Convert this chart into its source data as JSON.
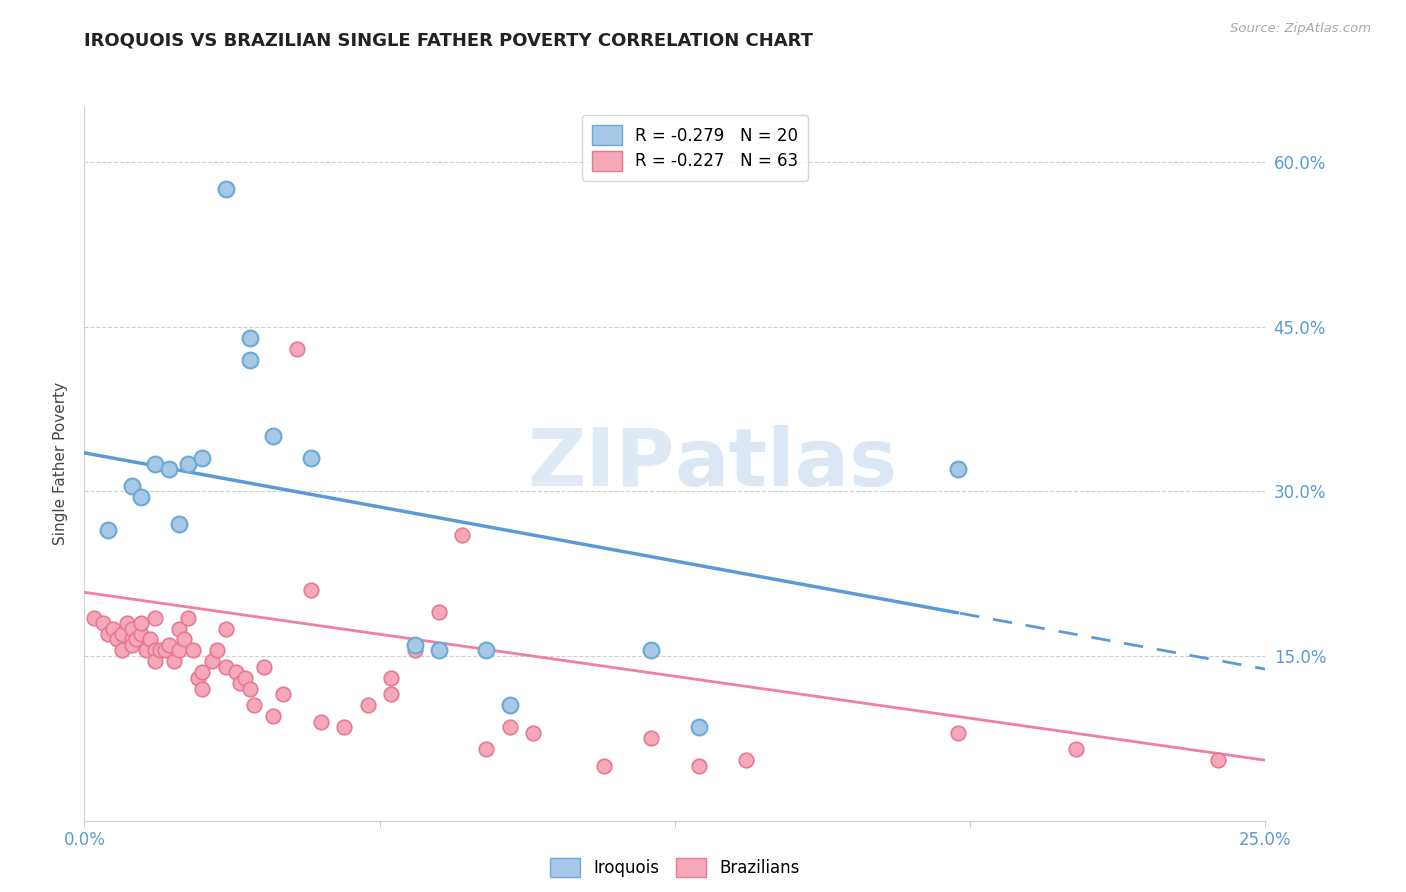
{
  "title": "IROQUOIS VS BRAZILIAN SINGLE FATHER POVERTY CORRELATION CHART",
  "source": "Source: ZipAtlas.com",
  "ylabel": "Single Father Poverty",
  "watermark_zip": "ZIP",
  "watermark_atlas": "atlas",
  "x_min": 0.0,
  "x_max": 0.25,
  "y_min": 0.0,
  "y_max": 0.65,
  "yticks": [
    0.0,
    0.15,
    0.3,
    0.45,
    0.6
  ],
  "ytick_labels": [
    "",
    "15.0%",
    "30.0%",
    "45.0%",
    "60.0%"
  ],
  "xticks": [
    0.0,
    0.0625,
    0.125,
    0.1875,
    0.25
  ],
  "xtick_labels": [
    "0.0%",
    "",
    "",
    "",
    "25.0%"
  ],
  "iroquois_color": "#a8c8e8",
  "brazilians_color": "#f4a8b8",
  "iroquois_edge_color": "#6aaad4",
  "brazilians_edge_color": "#e87898",
  "iroquois_line_color": "#5b9bd5",
  "brazilians_line_color": "#f080a0",
  "R_iroquois": -0.279,
  "N_iroquois": 20,
  "R_brazilians": -0.227,
  "N_brazilians": 63,
  "iq_line_x0": 0.0,
  "iq_line_y0": 0.335,
  "iq_line_x1": 0.25,
  "iq_line_y1": 0.138,
  "iq_line_solid_end": 0.185,
  "br_line_x0": 0.0,
  "br_line_y0": 0.208,
  "br_line_x1": 0.25,
  "br_line_y1": 0.055,
  "iroquois_x": [
    0.005,
    0.01,
    0.012,
    0.015,
    0.018,
    0.02,
    0.022,
    0.025,
    0.03,
    0.035,
    0.04,
    0.048,
    0.07,
    0.075,
    0.085,
    0.09,
    0.12,
    0.13,
    0.185,
    0.035
  ],
  "iroquois_y": [
    0.265,
    0.305,
    0.295,
    0.325,
    0.32,
    0.27,
    0.325,
    0.33,
    0.575,
    0.44,
    0.35,
    0.33,
    0.16,
    0.155,
    0.155,
    0.105,
    0.155,
    0.085,
    0.32,
    0.42
  ],
  "brazilians_x": [
    0.002,
    0.004,
    0.005,
    0.006,
    0.007,
    0.008,
    0.008,
    0.009,
    0.01,
    0.01,
    0.01,
    0.011,
    0.012,
    0.012,
    0.013,
    0.014,
    0.015,
    0.015,
    0.015,
    0.016,
    0.017,
    0.018,
    0.019,
    0.02,
    0.02,
    0.021,
    0.022,
    0.023,
    0.024,
    0.025,
    0.025,
    0.027,
    0.028,
    0.03,
    0.03,
    0.032,
    0.033,
    0.034,
    0.035,
    0.036,
    0.038,
    0.04,
    0.042,
    0.045,
    0.048,
    0.05,
    0.055,
    0.06,
    0.065,
    0.065,
    0.07,
    0.075,
    0.08,
    0.085,
    0.09,
    0.095,
    0.11,
    0.12,
    0.13,
    0.14,
    0.185,
    0.21,
    0.24
  ],
  "brazilians_y": [
    0.185,
    0.18,
    0.17,
    0.175,
    0.165,
    0.155,
    0.17,
    0.18,
    0.165,
    0.175,
    0.16,
    0.165,
    0.17,
    0.18,
    0.155,
    0.165,
    0.155,
    0.145,
    0.185,
    0.155,
    0.155,
    0.16,
    0.145,
    0.175,
    0.155,
    0.165,
    0.185,
    0.155,
    0.13,
    0.12,
    0.135,
    0.145,
    0.155,
    0.175,
    0.14,
    0.135,
    0.125,
    0.13,
    0.12,
    0.105,
    0.14,
    0.095,
    0.115,
    0.43,
    0.21,
    0.09,
    0.085,
    0.105,
    0.115,
    0.13,
    0.155,
    0.19,
    0.26,
    0.065,
    0.085,
    0.08,
    0.05,
    0.075,
    0.05,
    0.055,
    0.08,
    0.065,
    0.055
  ]
}
